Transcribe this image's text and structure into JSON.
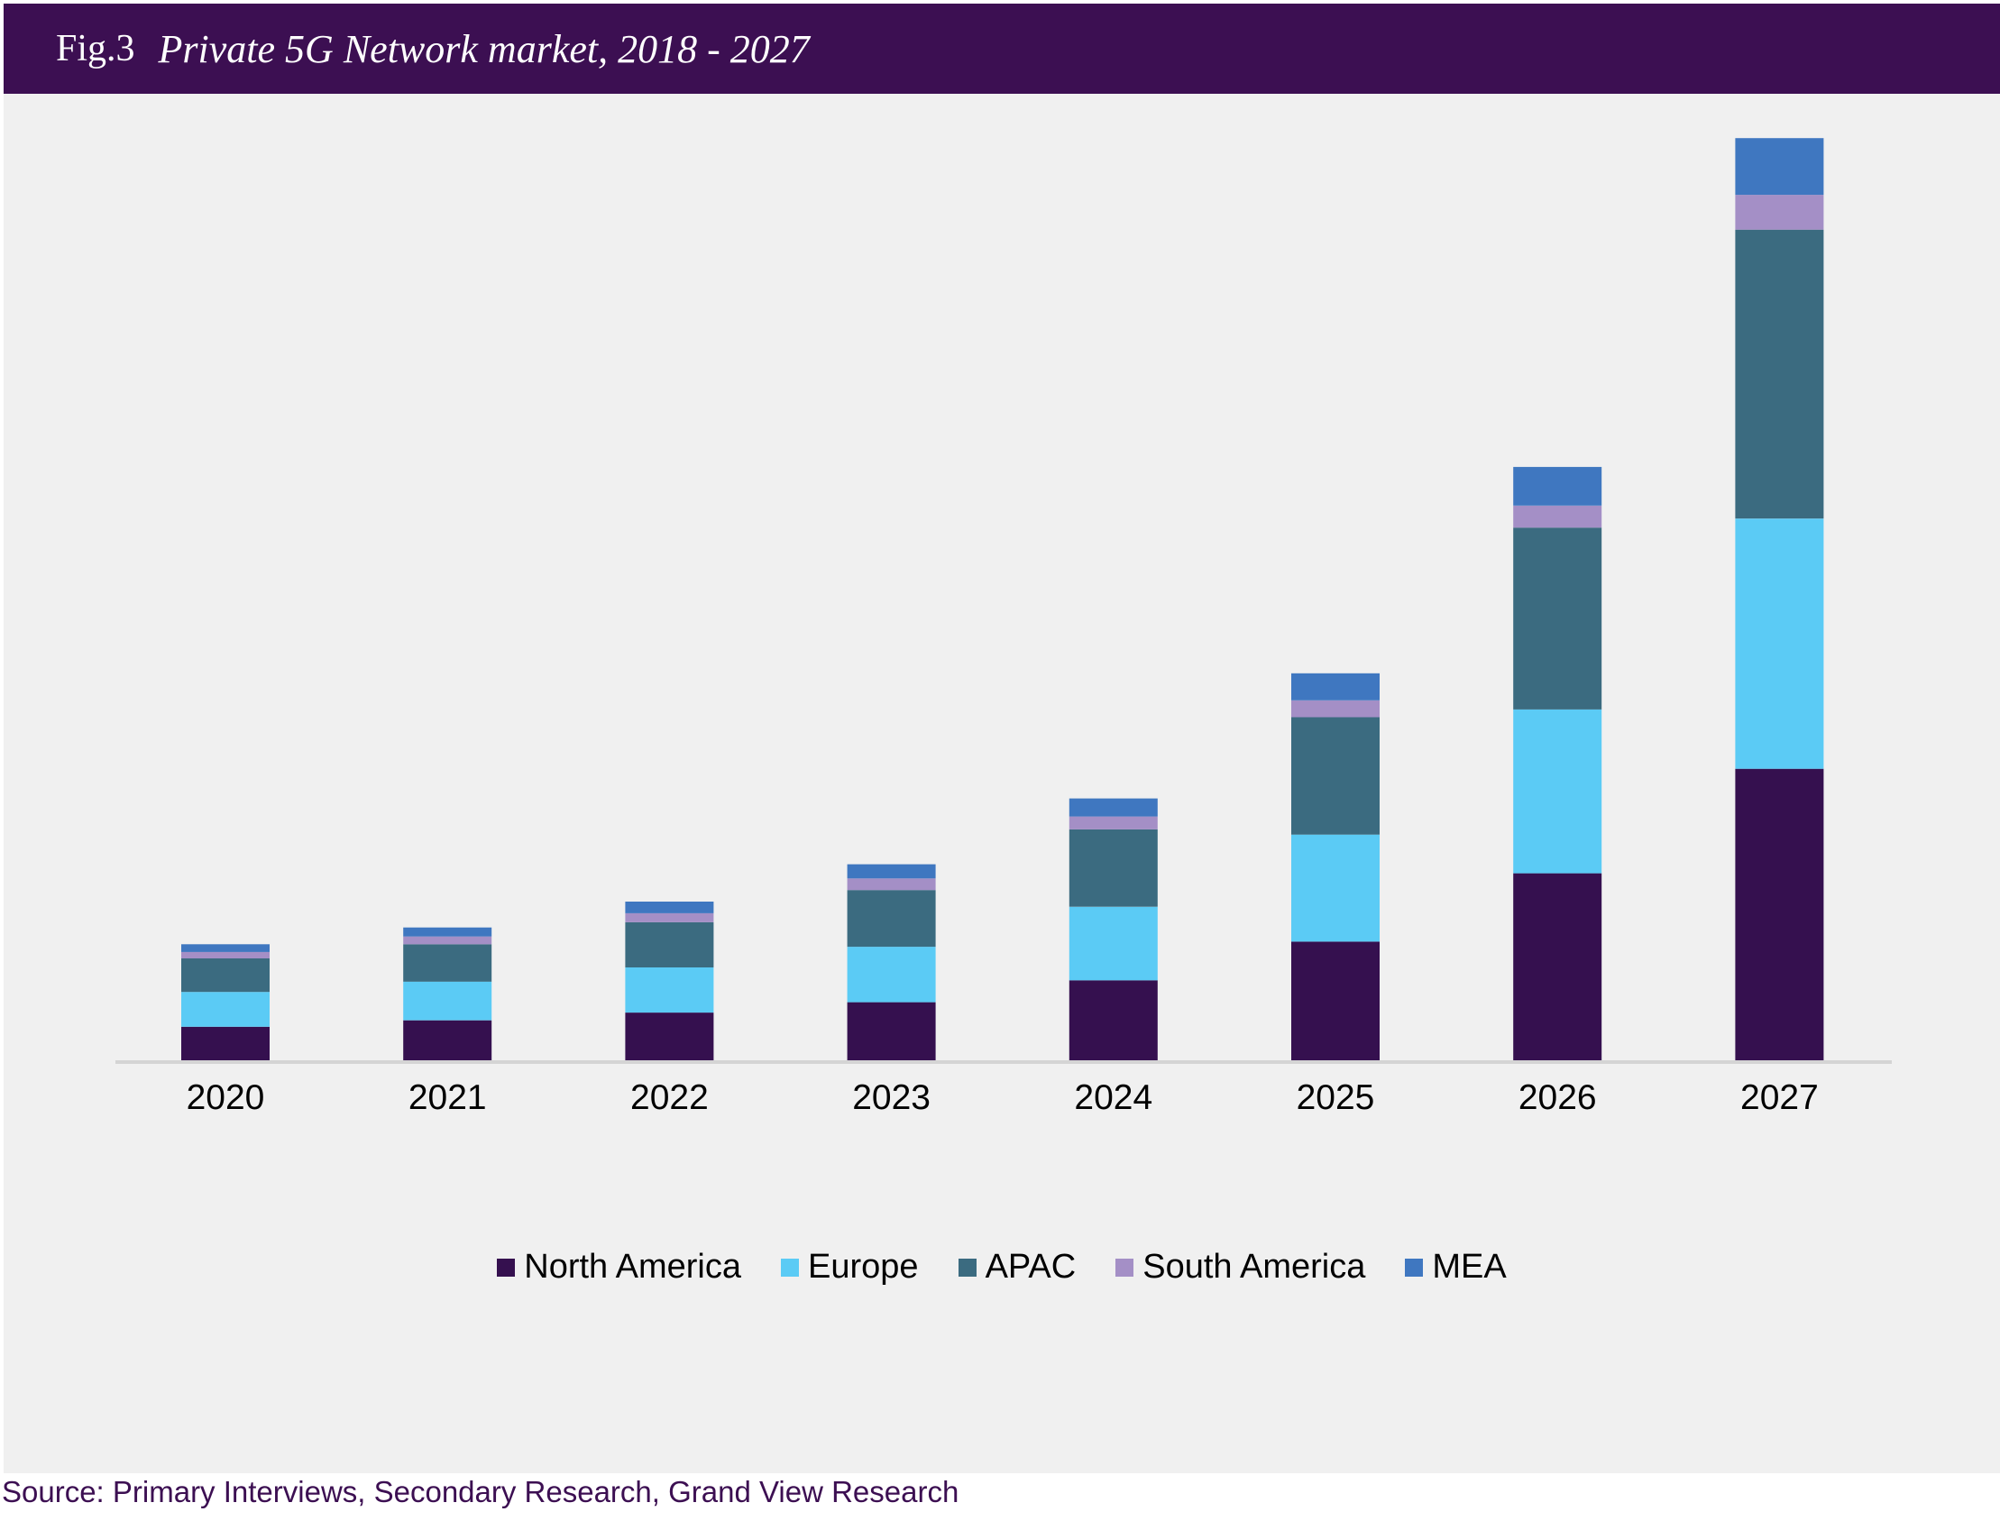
{
  "header": {
    "fig_label": "Fig.3",
    "title": "Private 5G Network market, 2018 - 2027"
  },
  "chart_data": {
    "type": "bar",
    "stacked": true,
    "title": "Private 5G Network market, 2018 - 2027",
    "xlabel": "",
    "ylabel": "",
    "y_axis_shown": false,
    "grid": false,
    "legend_position": "bottom",
    "ylim": [
      0,
      720
    ],
    "categories": [
      "2020",
      "2021",
      "2022",
      "2023",
      "2024",
      "2025",
      "2026",
      "2027"
    ],
    "series": [
      {
        "name": "North America",
        "color": "#35104f",
        "values": [
          26,
          31,
          37,
          45,
          62,
          92,
          145,
          226
        ]
      },
      {
        "name": "Europe",
        "color": "#5bcbf5",
        "values": [
          27,
          30,
          35,
          43,
          57,
          83,
          127,
          194
        ]
      },
      {
        "name": "APAC",
        "color": "#3b6b80",
        "values": [
          26,
          29,
          35,
          44,
          60,
          91,
          141,
          224
        ]
      },
      {
        "name": "South America",
        "color": "#a48fc6",
        "values": [
          5,
          6,
          7,
          9,
          10,
          13,
          17,
          27
        ]
      },
      {
        "name": "MEA",
        "color": "#3f77c0",
        "values": [
          6,
          7,
          9,
          11,
          14,
          21,
          30,
          44
        ]
      }
    ]
  },
  "source": "Source: Primary Interviews, Secondary Research, Grand View Research",
  "colors": {
    "header_bg": "#3c0f52",
    "figure_bg": "#f0f0f0",
    "axis": "#d4d4d4",
    "source_text": "#3c0f52"
  }
}
